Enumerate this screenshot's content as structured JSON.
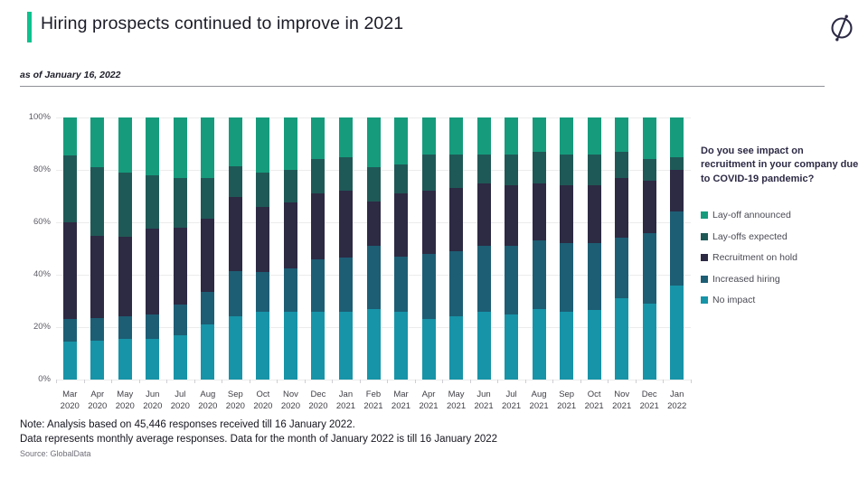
{
  "page": {
    "title": "Hiring prospects continued to improve in 2021",
    "as_of": "as of January 16, 2022",
    "note_line1": "Note: Analysis based on 45,446 responses received till 16 January 2022.",
    "note_line2": "Data represents monthly average responses. Data for the month of January 2022 is till 16 January 2022",
    "source": "Source: GlobalData"
  },
  "colors": {
    "accent": "#0dc28e",
    "icon": "#2d2a45",
    "lay_off_announced": "#169c7d",
    "lay_offs_expected": "#1f5957",
    "recruitment_on_hold": "#2d2a44",
    "increased_hiring": "#1d5e74",
    "no_impact": "#1794a8"
  },
  "legend": {
    "question": "Do you see impact on recruitment in your company due to COVID-19 pandemic?",
    "items": [
      {
        "label": "Lay-off announced",
        "color": "#169c7d"
      },
      {
        "label": "Lay-offs expected",
        "color": "#1f5957"
      },
      {
        "label": "Recruitment on hold",
        "color": "#2d2a44"
      },
      {
        "label": "Increased hiring",
        "color": "#1d5e74"
      },
      {
        "label": "No impact",
        "color": "#1794a8"
      }
    ]
  },
  "chart_data": {
    "type": "bar",
    "stacked": true,
    "unit": "percent",
    "title": "Hiring prospects continued to improve in 2021",
    "xlabel": "",
    "ylabel": "",
    "ylim": [
      0,
      100
    ],
    "yticks": [
      0,
      20,
      40,
      60,
      80,
      100
    ],
    "ytick_labels": [
      "0%",
      "20%",
      "40%",
      "60%",
      "80%",
      "100%"
    ],
    "grid": true,
    "legend_position": "right",
    "categories": [
      "Mar 2020",
      "Apr 2020",
      "May 2020",
      "Jun 2020",
      "Jul 2020",
      "Aug 2020",
      "Sep 2020",
      "Oct 2020",
      "Nov 2020",
      "Dec 2020",
      "Jan 2021",
      "Feb 2021",
      "Mar 2021",
      "Apr 2021",
      "May 2021",
      "Jun 2021",
      "Jul 2021",
      "Aug 2021",
      "Sep 2021",
      "Oct 2021",
      "Nov 2021",
      "Dec 2021",
      "Jan 2022"
    ],
    "series": [
      {
        "name": "No impact",
        "color": "#1794a8",
        "values": [
          14.5,
          15,
          15.5,
          15.5,
          17,
          21,
          24,
          26,
          26,
          26,
          26,
          27,
          26,
          23,
          24,
          26,
          25,
          27,
          26,
          26.5,
          31,
          29,
          36
        ]
      },
      {
        "name": "Increased hiring",
        "color": "#1d5e74",
        "values": [
          8.5,
          8.5,
          8.5,
          9.5,
          11.5,
          12.5,
          17.5,
          15,
          16.5,
          20,
          20.5,
          24,
          21,
          25,
          25,
          25,
          26,
          26,
          26,
          25.5,
          23,
          27,
          28
        ]
      },
      {
        "name": "Recruitment on hold",
        "color": "#2d2a44",
        "values": [
          37,
          31.5,
          30.5,
          32.5,
          29.5,
          28,
          28,
          25,
          25,
          25,
          25.5,
          17,
          24,
          24,
          24,
          24,
          23,
          22,
          22,
          22,
          23,
          20,
          16
        ]
      },
      {
        "name": "Lay-offs expected",
        "color": "#1f5957",
        "values": [
          25.5,
          26,
          24.5,
          20.5,
          19,
          15.5,
          12,
          13,
          12.5,
          13,
          13,
          13,
          11,
          14,
          13,
          11,
          12,
          12,
          12,
          12,
          10,
          8,
          5
        ]
      },
      {
        "name": "Lay-off announced",
        "color": "#169c7d",
        "values": [
          14.5,
          19,
          21,
          22,
          23,
          23,
          18.5,
          21,
          20,
          16,
          15,
          19,
          18,
          14,
          14,
          14,
          14,
          13,
          14,
          14,
          13,
          16,
          15
        ]
      }
    ]
  }
}
